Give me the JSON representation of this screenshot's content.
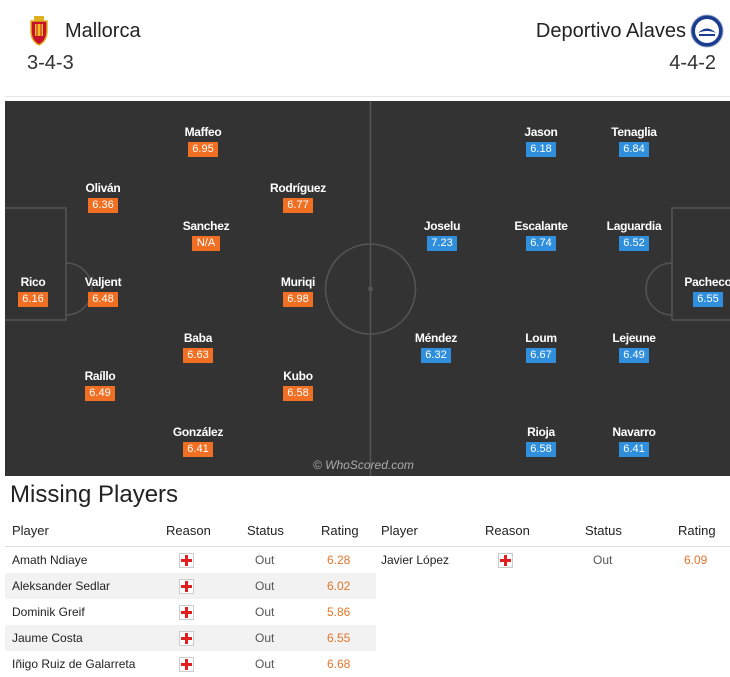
{
  "header": {
    "home_team": "Mallorca",
    "home_formation": "3-4-3",
    "away_team": "Deportivo Alaves",
    "away_formation": "4-4-2"
  },
  "colors": {
    "home_rating_bg": "#f16f22",
    "away_rating_bg": "#2f8fdd",
    "pitch": "#333333"
  },
  "pitch": {
    "watermark": "© WhoScored.com",
    "home_players": [
      {
        "name": "Maffeo",
        "rating": "6.95"
      },
      {
        "name": "Oliván",
        "rating": "6.36"
      },
      {
        "name": "Rodríguez",
        "rating": "6.77"
      },
      {
        "name": "Sanchez",
        "rating": "N/A"
      },
      {
        "name": "Rico",
        "rating": "6.16"
      },
      {
        "name": "Valjent",
        "rating": "6.48"
      },
      {
        "name": "Muriqi",
        "rating": "6.98"
      },
      {
        "name": "Baba",
        "rating": "6.63"
      },
      {
        "name": "Raíllo",
        "rating": "6.49"
      },
      {
        "name": "Kubo",
        "rating": "6.58"
      },
      {
        "name": "González",
        "rating": "6.41"
      }
    ],
    "away_players": [
      {
        "name": "Jason",
        "rating": "6.18"
      },
      {
        "name": "Tenaglia",
        "rating": "6.84"
      },
      {
        "name": "Joselu",
        "rating": "7.23"
      },
      {
        "name": "Escalante",
        "rating": "6.74"
      },
      {
        "name": "Laguardia",
        "rating": "6.52"
      },
      {
        "name": "Pacheco",
        "rating": "6.55"
      },
      {
        "name": "Méndez",
        "rating": "6.32"
      },
      {
        "name": "Loum",
        "rating": "6.67"
      },
      {
        "name": "Lejeune",
        "rating": "6.49"
      },
      {
        "name": "Rioja",
        "rating": "6.58"
      },
      {
        "name": "Navarro",
        "rating": "6.41"
      }
    ]
  },
  "missing": {
    "title": "Missing Players",
    "columns": {
      "player": "Player",
      "reason": "Reason",
      "status": "Status",
      "rating": "Rating"
    },
    "home": [
      {
        "player": "Amath Ndiaye",
        "reason_icon": "injury-red-cross-icon",
        "status": "Out",
        "rating": "6.28"
      },
      {
        "player": "Aleksander Sedlar",
        "reason_icon": "injury-red-cross-icon",
        "status": "Out",
        "rating": "6.02"
      },
      {
        "player": "Dominik Greif",
        "reason_icon": "injury-red-cross-icon",
        "status": "Out",
        "rating": "5.86"
      },
      {
        "player": "Jaume Costa",
        "reason_icon": "injury-red-cross-icon",
        "status": "Out",
        "rating": "6.55"
      },
      {
        "player": "Iñigo Ruiz de Galarreta",
        "reason_icon": "injury-red-cross-icon",
        "status": "Out",
        "rating": "6.68"
      }
    ],
    "away": [
      {
        "player": "Javier López",
        "reason_icon": "injury-red-cross-icon",
        "status": "Out",
        "rating": "6.09"
      }
    ]
  }
}
